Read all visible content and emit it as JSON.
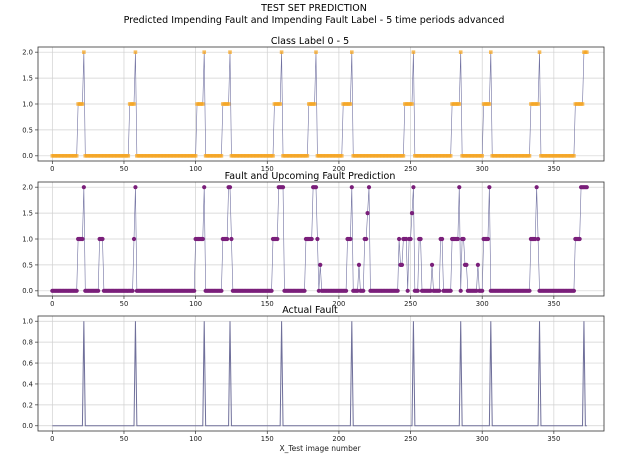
{
  "figure": {
    "title_line1": "TEST SET PREDICTION",
    "title_line2": "Predicted Impending Fault and Impending Fault Label - 5 time periods advanced"
  },
  "colors": {
    "orange": "#f5a623",
    "purple": "#7a1f7a",
    "slate": "#6f6f9a",
    "grid": "#d0d0d0"
  },
  "chart_data": [
    {
      "type": "line",
      "title": "Class Label 0 - 5",
      "marker": "square",
      "color": "#f5a623",
      "xlim": [
        -10,
        385
      ],
      "ylim": [
        -0.1,
        2.1
      ],
      "xticks": [
        0,
        50,
        100,
        150,
        200,
        250,
        300,
        350
      ],
      "yticks": [
        0.0,
        0.5,
        1.0,
        1.5,
        2.0
      ],
      "xlabel": "",
      "ylabel": "",
      "grid": true,
      "n_points": 374,
      "series": [
        {
          "values_by_x_segment": [
            {
              "x": [
                0,
                17
              ],
              "y": 0
            },
            {
              "x": [
                18,
                21
              ],
              "y": 1
            },
            {
              "x": [
                22,
                22
              ],
              "y": 2
            },
            {
              "x": [
                23,
                53
              ],
              "y": 0
            },
            {
              "x": [
                54,
                57
              ],
              "y": 1
            },
            {
              "x": [
                58,
                58
              ],
              "y": 2
            },
            {
              "x": [
                59,
                100
              ],
              "y": 0
            },
            {
              "x": [
                101,
                105
              ],
              "y": 1
            },
            {
              "x": [
                106,
                106
              ],
              "y": 2
            },
            {
              "x": [
                107,
                118
              ],
              "y": 0
            },
            {
              "x": [
                119,
                123
              ],
              "y": 1
            },
            {
              "x": [
                124,
                124
              ],
              "y": 2
            },
            {
              "x": [
                125,
                154
              ],
              "y": 0
            },
            {
              "x": [
                155,
                159
              ],
              "y": 1
            },
            {
              "x": [
                160,
                160
              ],
              "y": 2
            },
            {
              "x": [
                161,
                178
              ],
              "y": 0
            },
            {
              "x": [
                179,
                183
              ],
              "y": 1
            },
            {
              "x": [
                184,
                184
              ],
              "y": 2
            },
            {
              "x": [
                185,
                202
              ],
              "y": 0
            },
            {
              "x": [
                203,
                208
              ],
              "y": 1
            },
            {
              "x": [
                209,
                209
              ],
              "y": 2
            },
            {
              "x": [
                210,
                245
              ],
              "y": 0
            },
            {
              "x": [
                246,
                251
              ],
              "y": 1
            },
            {
              "x": [
                252,
                252
              ],
              "y": 2
            },
            {
              "x": [
                253,
                278
              ],
              "y": 0
            },
            {
              "x": [
                279,
                284
              ],
              "y": 1
            },
            {
              "x": [
                285,
                285
              ],
              "y": 2
            },
            {
              "x": [
                286,
                300
              ],
              "y": 0
            },
            {
              "x": [
                301,
                305
              ],
              "y": 1
            },
            {
              "x": [
                306,
                306
              ],
              "y": 2
            },
            {
              "x": [
                307,
                333
              ],
              "y": 0
            },
            {
              "x": [
                334,
                339
              ],
              "y": 1
            },
            {
              "x": [
                340,
                340
              ],
              "y": 2
            },
            {
              "x": [
                341,
                364
              ],
              "y": 0
            },
            {
              "x": [
                365,
                370
              ],
              "y": 1
            },
            {
              "x": [
                371,
                373
              ],
              "y": 2
            }
          ]
        }
      ]
    },
    {
      "type": "line",
      "title": "Fault and Upcoming Fault Prediction",
      "marker": "circle",
      "color": "#7a1f7a",
      "xlim": [
        -10,
        385
      ],
      "ylim": [
        -0.1,
        2.1
      ],
      "xticks": [
        0,
        50,
        100,
        150,
        200,
        250,
        300,
        350
      ],
      "yticks": [
        0.0,
        0.5,
        1.0,
        1.5,
        2.0
      ],
      "xlabel": "",
      "ylabel": "",
      "grid": true,
      "n_points": 374,
      "series": [
        {
          "values_by_x_segment": [
            {
              "x": [
                0,
                17
              ],
              "y": 0
            },
            {
              "x": [
                18,
                21
              ],
              "y": 1
            },
            {
              "x": [
                22,
                22
              ],
              "y": 2
            },
            {
              "x": [
                23,
                32
              ],
              "y": 0
            },
            {
              "x": [
                33,
                35
              ],
              "y": 1
            },
            {
              "x": [
                36,
                56
              ],
              "y": 0
            },
            {
              "x": [
                57,
                57
              ],
              "y": 1
            },
            {
              "x": [
                58,
                58
              ],
              "y": 2
            },
            {
              "x": [
                59,
                99
              ],
              "y": 0
            },
            {
              "x": [
                100,
                105
              ],
              "y": 1
            },
            {
              "x": [
                106,
                106
              ],
              "y": 2
            },
            {
              "x": [
                107,
                118
              ],
              "y": 0
            },
            {
              "x": [
                119,
                122
              ],
              "y": 1
            },
            {
              "x": [
                123,
                124
              ],
              "y": 2
            },
            {
              "x": [
                125,
                125
              ],
              "y": 1
            },
            {
              "x": [
                126,
                153
              ],
              "y": 0
            },
            {
              "x": [
                154,
                157
              ],
              "y": 1
            },
            {
              "x": [
                158,
                161
              ],
              "y": 2
            },
            {
              "x": [
                162,
                176
              ],
              "y": 0
            },
            {
              "x": [
                177,
                181
              ],
              "y": 1
            },
            {
              "x": [
                182,
                184
              ],
              "y": 2
            },
            {
              "x": [
                185,
                185
              ],
              "y": 1
            },
            {
              "x": [
                186,
                186
              ],
              "y": 0
            },
            {
              "x": [
                187,
                187
              ],
              "y": 0.5
            },
            {
              "x": [
                188,
                205
              ],
              "y": 0
            },
            {
              "x": [
                206,
                208
              ],
              "y": 1
            },
            {
              "x": [
                209,
                209
              ],
              "y": 2
            },
            {
              "x": [
                210,
                213
              ],
              "y": 0
            },
            {
              "x": [
                214,
                214
              ],
              "y": 0.5
            },
            {
              "x": [
                215,
                217
              ],
              "y": 0
            },
            {
              "x": [
                218,
                219
              ],
              "y": 1
            },
            {
              "x": [
                220,
                220
              ],
              "y": 1.5
            },
            {
              "x": [
                221,
                221
              ],
              "y": 2
            },
            {
              "x": [
                222,
                241
              ],
              "y": 0
            },
            {
              "x": [
                242,
                242
              ],
              "y": 1
            },
            {
              "x": [
                243,
                244
              ],
              "y": 0.5
            },
            {
              "x": [
                245,
                247
              ],
              "y": 1
            },
            {
              "x": [
                248,
                248
              ],
              "y": 0
            },
            {
              "x": [
                249,
                250
              ],
              "y": 1
            },
            {
              "x": [
                251,
                251
              ],
              "y": 1.5
            },
            {
              "x": [
                252,
                252
              ],
              "y": 2
            },
            {
              "x": [
                253,
                255
              ],
              "y": 0
            },
            {
              "x": [
                256,
                257
              ],
              "y": 1
            },
            {
              "x": [
                258,
                264
              ],
              "y": 0
            },
            {
              "x": [
                265,
                265
              ],
              "y": 0.5
            },
            {
              "x": [
                266,
                270
              ],
              "y": 0
            },
            {
              "x": [
                271,
                272
              ],
              "y": 1
            },
            {
              "x": [
                273,
                278
              ],
              "y": 0
            },
            {
              "x": [
                279,
                283
              ],
              "y": 1
            },
            {
              "x": [
                284,
                284
              ],
              "y": 2
            },
            {
              "x": [
                285,
                285
              ],
              "y": 0
            },
            {
              "x": [
                286,
                287
              ],
              "y": 1
            },
            {
              "x": [
                288,
                289
              ],
              "y": 0.5
            },
            {
              "x": [
                290,
                296
              ],
              "y": 0
            },
            {
              "x": [
                297,
                297
              ],
              "y": 0.5
            },
            {
              "x": [
                298,
                300
              ],
              "y": 0
            },
            {
              "x": [
                301,
                304
              ],
              "y": 1
            },
            {
              "x": [
                305,
                305
              ],
              "y": 2
            },
            {
              "x": [
                306,
                333
              ],
              "y": 0
            },
            {
              "x": [
                334,
                337
              ],
              "y": 1
            },
            {
              "x": [
                338,
                338
              ],
              "y": 2
            },
            {
              "x": [
                339,
                339
              ],
              "y": 1
            },
            {
              "x": [
                340,
                364
              ],
              "y": 0
            },
            {
              "x": [
                365,
                368
              ],
              "y": 1
            },
            {
              "x": [
                369,
                373
              ],
              "y": 2
            }
          ]
        }
      ]
    },
    {
      "type": "line",
      "title": "Actual Fault",
      "marker": "none",
      "color": "#6f6f9a",
      "xlim": [
        -10,
        385
      ],
      "ylim": [
        -0.05,
        1.05
      ],
      "xticks": [
        0,
        50,
        100,
        150,
        200,
        250,
        300,
        350
      ],
      "yticks": [
        0.0,
        0.2,
        0.4,
        0.6,
        0.8,
        1.0
      ],
      "xlabel": "X_Test image number",
      "ylabel": "",
      "grid": true,
      "n_points": 374,
      "series": [
        {
          "baseline": 0,
          "spikes_at_value_1": [
            22,
            58,
            106,
            124,
            160,
            209,
            252,
            285,
            306,
            340,
            371
          ]
        }
      ]
    }
  ]
}
